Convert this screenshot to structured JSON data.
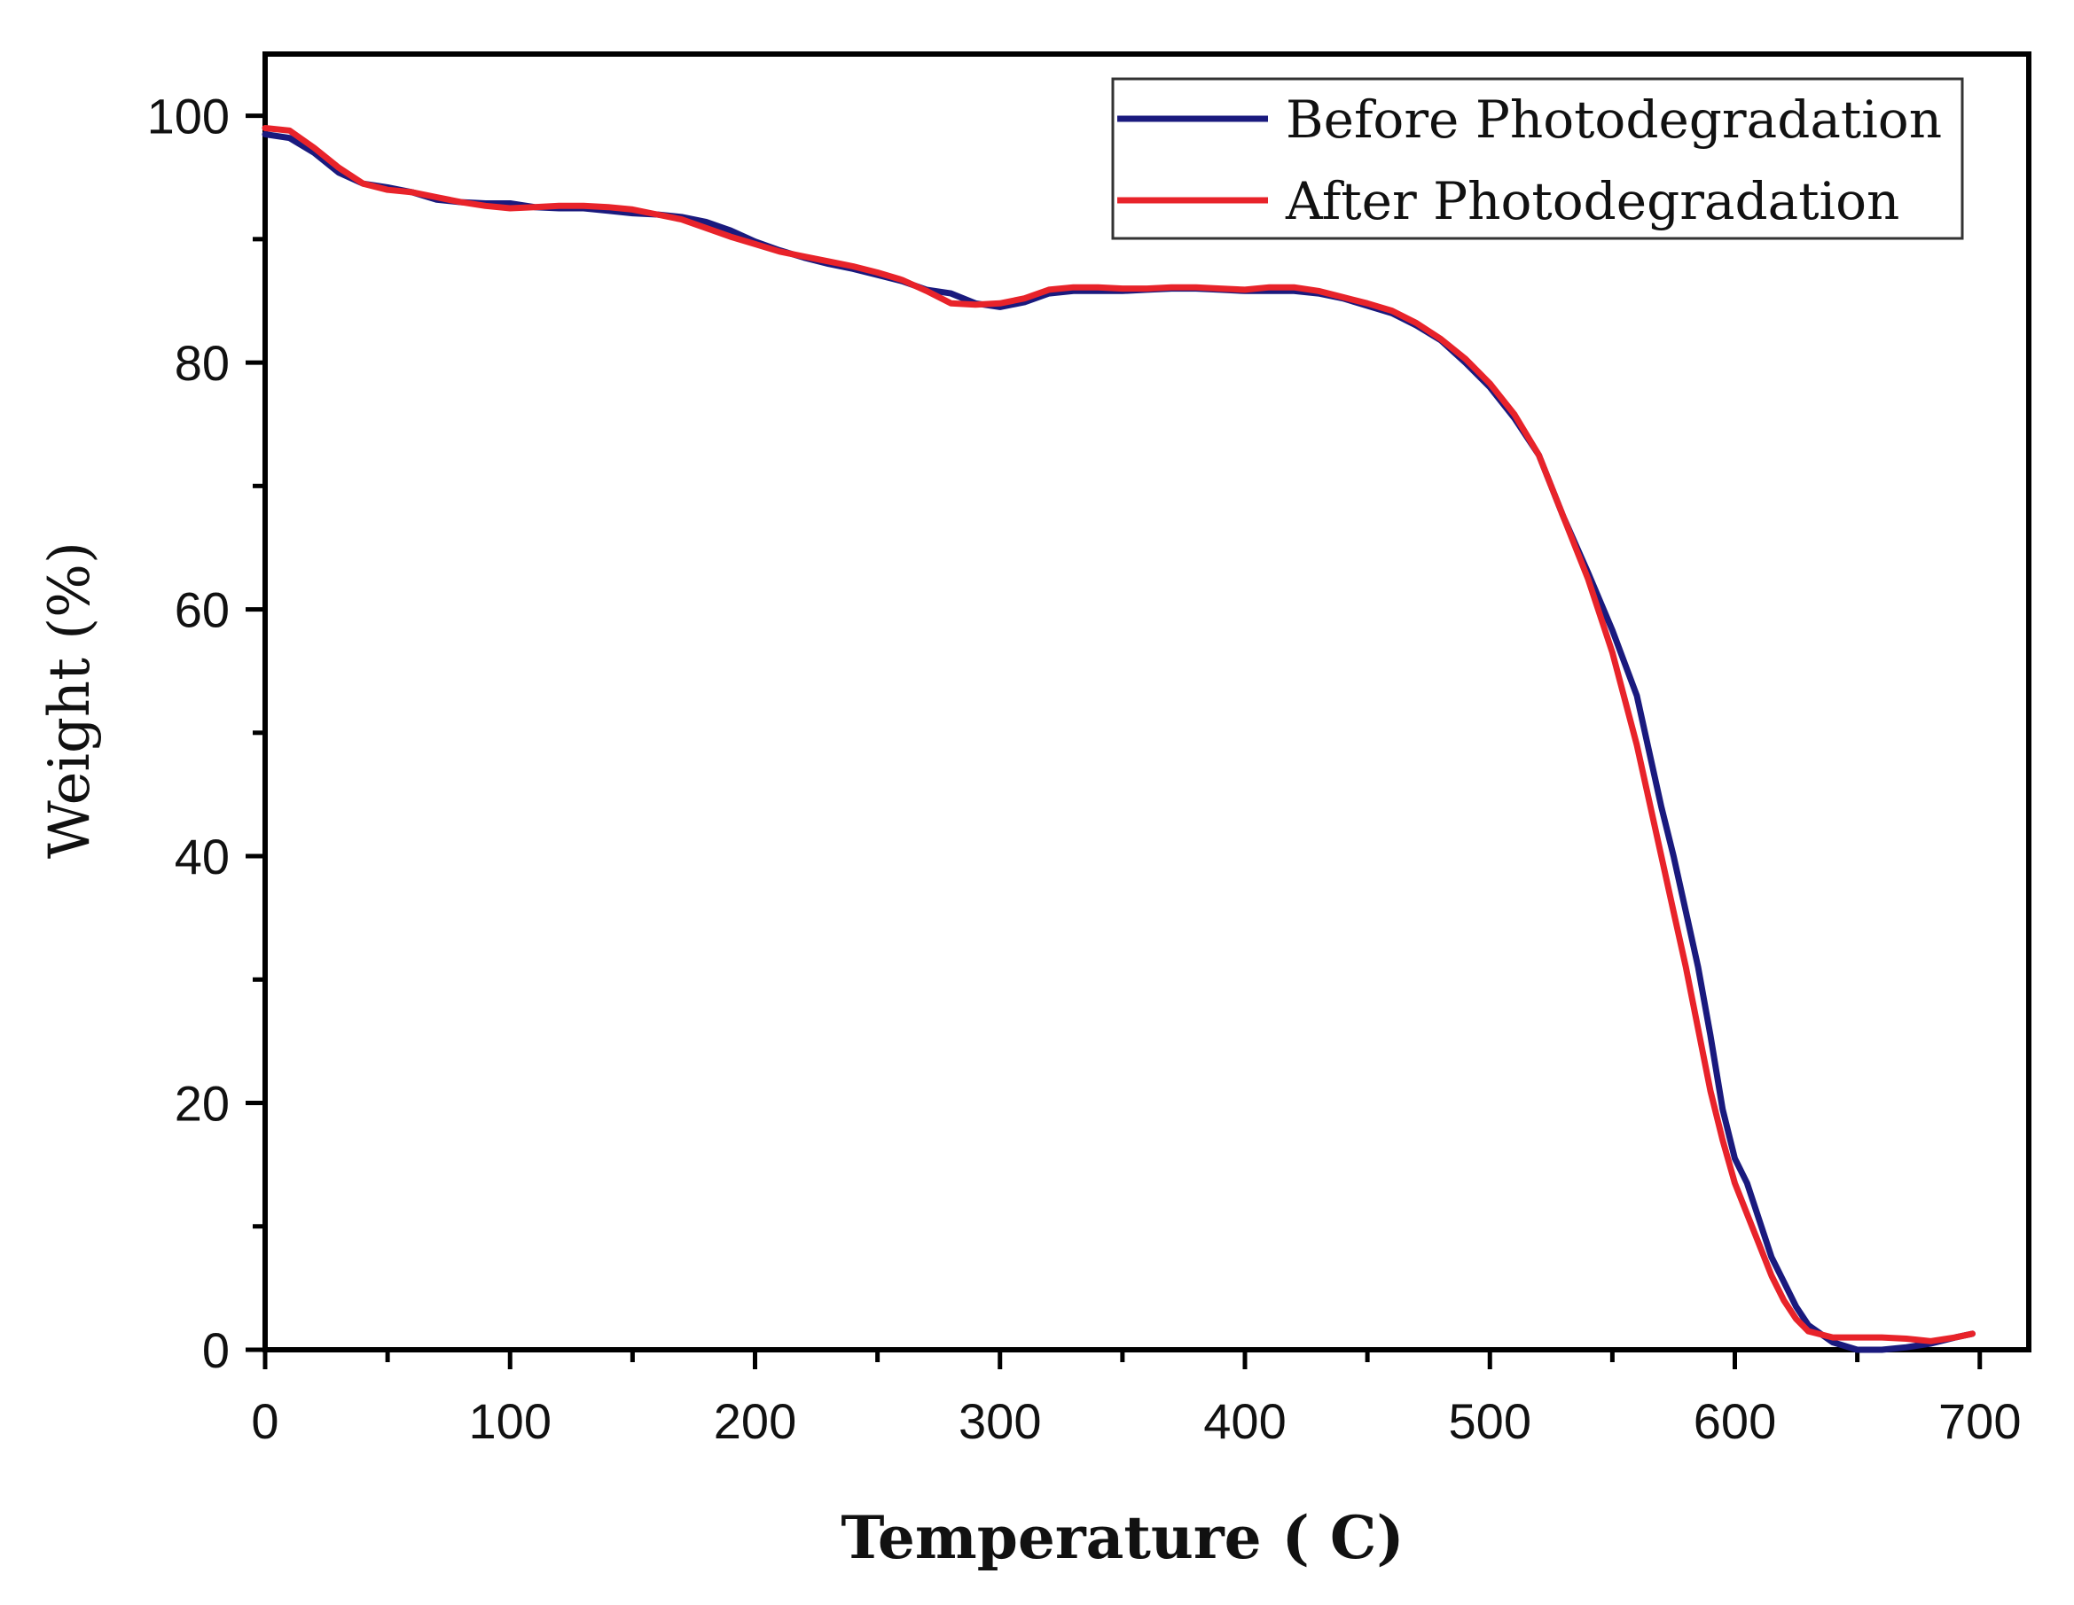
{
  "chart_data": {
    "type": "line",
    "title": "",
    "xlabel": "Temperature ( C)",
    "ylabel": "Weight (%)",
    "xlim": [
      0,
      720
    ],
    "ylim": [
      0,
      105
    ],
    "x_ticks": [
      0,
      100,
      200,
      300,
      400,
      500,
      600,
      700
    ],
    "y_ticks": [
      0,
      20,
      40,
      60,
      80,
      100
    ],
    "grid": false,
    "legend_position": "top-right",
    "series": [
      {
        "name": "Before Photodegradation",
        "color": "#1a1a7e",
        "points": [
          [
            0,
            98.5
          ],
          [
            10,
            98.2
          ],
          [
            20,
            97.0
          ],
          [
            30,
            95.4
          ],
          [
            40,
            94.5
          ],
          [
            50,
            94.2
          ],
          [
            60,
            93.8
          ],
          [
            70,
            93.2
          ],
          [
            80,
            93.0
          ],
          [
            90,
            92.9
          ],
          [
            100,
            92.9
          ],
          [
            110,
            92.6
          ],
          [
            120,
            92.5
          ],
          [
            130,
            92.5
          ],
          [
            140,
            92.3
          ],
          [
            150,
            92.1
          ],
          [
            160,
            92.0
          ],
          [
            170,
            91.8
          ],
          [
            180,
            91.4
          ],
          [
            190,
            90.7
          ],
          [
            200,
            89.8
          ],
          [
            210,
            89.1
          ],
          [
            220,
            88.5
          ],
          [
            230,
            88.0
          ],
          [
            240,
            87.6
          ],
          [
            250,
            87.1
          ],
          [
            260,
            86.6
          ],
          [
            270,
            85.9
          ],
          [
            280,
            85.6
          ],
          [
            290,
            84.8
          ],
          [
            300,
            84.5
          ],
          [
            310,
            84.9
          ],
          [
            320,
            85.6
          ],
          [
            330,
            85.8
          ],
          [
            340,
            85.8
          ],
          [
            350,
            85.8
          ],
          [
            360,
            85.9
          ],
          [
            370,
            86.0
          ],
          [
            380,
            86.0
          ],
          [
            390,
            85.9
          ],
          [
            400,
            85.8
          ],
          [
            410,
            85.8
          ],
          [
            420,
            85.8
          ],
          [
            430,
            85.6
          ],
          [
            440,
            85.2
          ],
          [
            450,
            84.6
          ],
          [
            460,
            84.0
          ],
          [
            470,
            83.0
          ],
          [
            480,
            81.8
          ],
          [
            490,
            80.0
          ],
          [
            500,
            78.0
          ],
          [
            510,
            75.5
          ],
          [
            520,
            72.5
          ],
          [
            530,
            67.5
          ],
          [
            540,
            63.0
          ],
          [
            550,
            58.3
          ],
          [
            560,
            53.0
          ],
          [
            565,
            48.5
          ],
          [
            570,
            44.0
          ],
          [
            575,
            40.0
          ],
          [
            580,
            35.5
          ],
          [
            585,
            31.0
          ],
          [
            590,
            25.5
          ],
          [
            595,
            19.5
          ],
          [
            600,
            15.5
          ],
          [
            605,
            13.5
          ],
          [
            610,
            10.5
          ],
          [
            615,
            7.5
          ],
          [
            620,
            5.5
          ],
          [
            625,
            3.5
          ],
          [
            630,
            2.0
          ],
          [
            640,
            0.6
          ],
          [
            650,
            0.0
          ],
          [
            660,
            0.0
          ],
          [
            670,
            0.2
          ],
          [
            680,
            0.5
          ],
          [
            690,
            1.0
          ],
          [
            697,
            1.3
          ]
        ]
      },
      {
        "name": "After Photodegradation",
        "color": "#e8232a",
        "points": [
          [
            0,
            99.0
          ],
          [
            10,
            98.8
          ],
          [
            20,
            97.4
          ],
          [
            30,
            95.8
          ],
          [
            40,
            94.5
          ],
          [
            50,
            94.0
          ],
          [
            60,
            93.8
          ],
          [
            70,
            93.4
          ],
          [
            80,
            93.0
          ],
          [
            90,
            92.7
          ],
          [
            100,
            92.5
          ],
          [
            110,
            92.6
          ],
          [
            120,
            92.7
          ],
          [
            130,
            92.7
          ],
          [
            140,
            92.6
          ],
          [
            150,
            92.4
          ],
          [
            160,
            92.0
          ],
          [
            170,
            91.6
          ],
          [
            180,
            90.9
          ],
          [
            190,
            90.2
          ],
          [
            200,
            89.6
          ],
          [
            210,
            89.0
          ],
          [
            220,
            88.6
          ],
          [
            230,
            88.2
          ],
          [
            240,
            87.8
          ],
          [
            250,
            87.3
          ],
          [
            260,
            86.7
          ],
          [
            270,
            85.8
          ],
          [
            280,
            84.8
          ],
          [
            290,
            84.7
          ],
          [
            300,
            84.8
          ],
          [
            310,
            85.2
          ],
          [
            320,
            85.9
          ],
          [
            330,
            86.1
          ],
          [
            340,
            86.1
          ],
          [
            350,
            86.0
          ],
          [
            360,
            86.0
          ],
          [
            370,
            86.1
          ],
          [
            380,
            86.1
          ],
          [
            390,
            86.0
          ],
          [
            400,
            85.9
          ],
          [
            410,
            86.1
          ],
          [
            420,
            86.1
          ],
          [
            430,
            85.8
          ],
          [
            440,
            85.3
          ],
          [
            450,
            84.8
          ],
          [
            460,
            84.2
          ],
          [
            470,
            83.2
          ],
          [
            480,
            81.9
          ],
          [
            490,
            80.3
          ],
          [
            500,
            78.3
          ],
          [
            510,
            75.8
          ],
          [
            520,
            72.5
          ],
          [
            530,
            67.5
          ],
          [
            540,
            62.5
          ],
          [
            550,
            56.5
          ],
          [
            560,
            49.0
          ],
          [
            565,
            44.5
          ],
          [
            570,
            40.0
          ],
          [
            575,
            35.5
          ],
          [
            580,
            31.0
          ],
          [
            585,
            26.0
          ],
          [
            590,
            21.0
          ],
          [
            595,
            17.0
          ],
          [
            600,
            13.5
          ],
          [
            605,
            11.0
          ],
          [
            610,
            8.5
          ],
          [
            615,
            6.0
          ],
          [
            620,
            4.0
          ],
          [
            625,
            2.5
          ],
          [
            630,
            1.5
          ],
          [
            640,
            1.0
          ],
          [
            650,
            1.0
          ],
          [
            660,
            1.0
          ],
          [
            670,
            0.9
          ],
          [
            680,
            0.7
          ],
          [
            690,
            1.0
          ],
          [
            697,
            1.3
          ]
        ]
      }
    ]
  }
}
